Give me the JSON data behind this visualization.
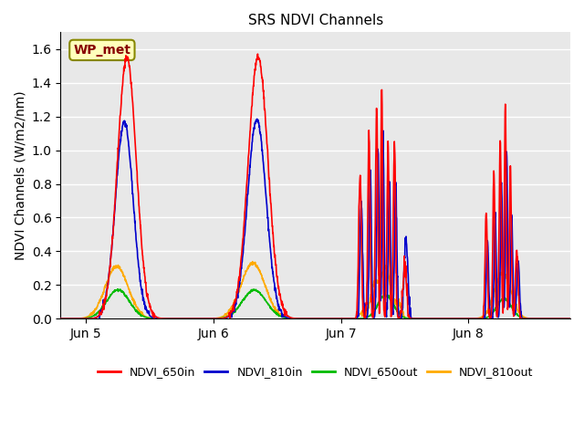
{
  "title": "SRS NDVI Channels",
  "ylabel": "NDVI Channels (W/m2/nm)",
  "ylim": [
    0.0,
    1.7
  ],
  "yticks": [
    0.0,
    0.2,
    0.4,
    0.6,
    0.8,
    1.0,
    1.2,
    1.4,
    1.6
  ],
  "xtick_labels": [
    "Jun 5",
    "Jun 6",
    "Jun 7",
    "Jun 8"
  ],
  "legend_labels": [
    "NDVI_650in",
    "NDVI_810in",
    "NDVI_650out",
    "NDVI_810out"
  ],
  "legend_colors": [
    "#ff0000",
    "#0000cc",
    "#00bb00",
    "#ffaa00"
  ],
  "annotation_text": "WP_met",
  "annotation_color": "#880000",
  "annotation_bg": "#ffffbb",
  "background_color": "#e8e8e8",
  "line_width": 1.2,
  "n_days": 4
}
